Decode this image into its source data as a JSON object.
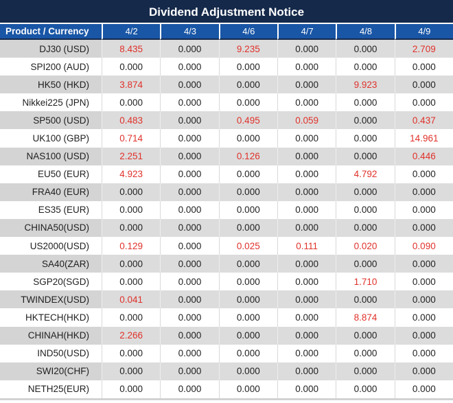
{
  "title": "Dividend Adjustment Notice",
  "colors": {
    "title_bg": "#15294a",
    "header_bg": "#1956a6",
    "stripe_label": "#d4d4d4",
    "stripe_data": "#dcdcdc",
    "highlight_red": "#e0312a",
    "text": "#1f1f1f"
  },
  "chart_data": {
    "type": "table",
    "title": "Dividend Adjustment Notice",
    "product_header": "Product / Currency",
    "date_columns": [
      "4/2",
      "4/3",
      "4/6",
      "4/7",
      "4/8",
      "4/9"
    ],
    "zero_display": "0.000",
    "rows": [
      {
        "product": "DJ30 (USD)",
        "values": [
          "8.435",
          "0.000",
          "9.235",
          "0.000",
          "0.000",
          "2.709"
        ]
      },
      {
        "product": "SPI200 (AUD)",
        "values": [
          "0.000",
          "0.000",
          "0.000",
          "0.000",
          "0.000",
          "0.000"
        ]
      },
      {
        "product": "HK50 (HKD)",
        "values": [
          "3.874",
          "0.000",
          "0.000",
          "0.000",
          "9.923",
          "0.000"
        ]
      },
      {
        "product": "Nikkei225 (JPN)",
        "values": [
          "0.000",
          "0.000",
          "0.000",
          "0.000",
          "0.000",
          "0.000"
        ]
      },
      {
        "product": "SP500 (USD)",
        "values": [
          "0.483",
          "0.000",
          "0.495",
          "0.059",
          "0.000",
          "0.437"
        ]
      },
      {
        "product": "UK100 (GBP)",
        "values": [
          "0.714",
          "0.000",
          "0.000",
          "0.000",
          "0.000",
          "14.961"
        ]
      },
      {
        "product": "NAS100 (USD)",
        "values": [
          "2.251",
          "0.000",
          "0.126",
          "0.000",
          "0.000",
          "0.446"
        ]
      },
      {
        "product": "EU50 (EUR)",
        "values": [
          "4.923",
          "0.000",
          "0.000",
          "0.000",
          "4.792",
          "0.000"
        ]
      },
      {
        "product": "FRA40 (EUR)",
        "values": [
          "0.000",
          "0.000",
          "0.000",
          "0.000",
          "0.000",
          "0.000"
        ]
      },
      {
        "product": "ES35 (EUR)",
        "values": [
          "0.000",
          "0.000",
          "0.000",
          "0.000",
          "0.000",
          "0.000"
        ]
      },
      {
        "product": "CHINA50(USD)",
        "values": [
          "0.000",
          "0.000",
          "0.000",
          "0.000",
          "0.000",
          "0.000"
        ]
      },
      {
        "product": "US2000(USD)",
        "values": [
          "0.129",
          "0.000",
          "0.025",
          "0.111",
          "0.020",
          "0.090"
        ]
      },
      {
        "product": "SA40(ZAR)",
        "values": [
          "0.000",
          "0.000",
          "0.000",
          "0.000",
          "0.000",
          "0.000"
        ]
      },
      {
        "product": "SGP20(SGD)",
        "values": [
          "0.000",
          "0.000",
          "0.000",
          "0.000",
          "1.710",
          "0.000"
        ]
      },
      {
        "product": "TWINDEX(USD)",
        "values": [
          "0.041",
          "0.000",
          "0.000",
          "0.000",
          "0.000",
          "0.000"
        ]
      },
      {
        "product": "HKTECH(HKD)",
        "values": [
          "0.000",
          "0.000",
          "0.000",
          "0.000",
          "8.874",
          "0.000"
        ]
      },
      {
        "product": "CHINAH(HKD)",
        "values": [
          "2.266",
          "0.000",
          "0.000",
          "0.000",
          "0.000",
          "0.000"
        ]
      },
      {
        "product": "IND50(USD)",
        "values": [
          "0.000",
          "0.000",
          "0.000",
          "0.000",
          "0.000",
          "0.000"
        ]
      },
      {
        "product": "SWI20(CHF)",
        "values": [
          "0.000",
          "0.000",
          "0.000",
          "0.000",
          "0.000",
          "0.000"
        ]
      },
      {
        "product": "NETH25(EUR)",
        "values": [
          "0.000",
          "0.000",
          "0.000",
          "0.000",
          "0.000",
          "0.000"
        ]
      }
    ]
  }
}
